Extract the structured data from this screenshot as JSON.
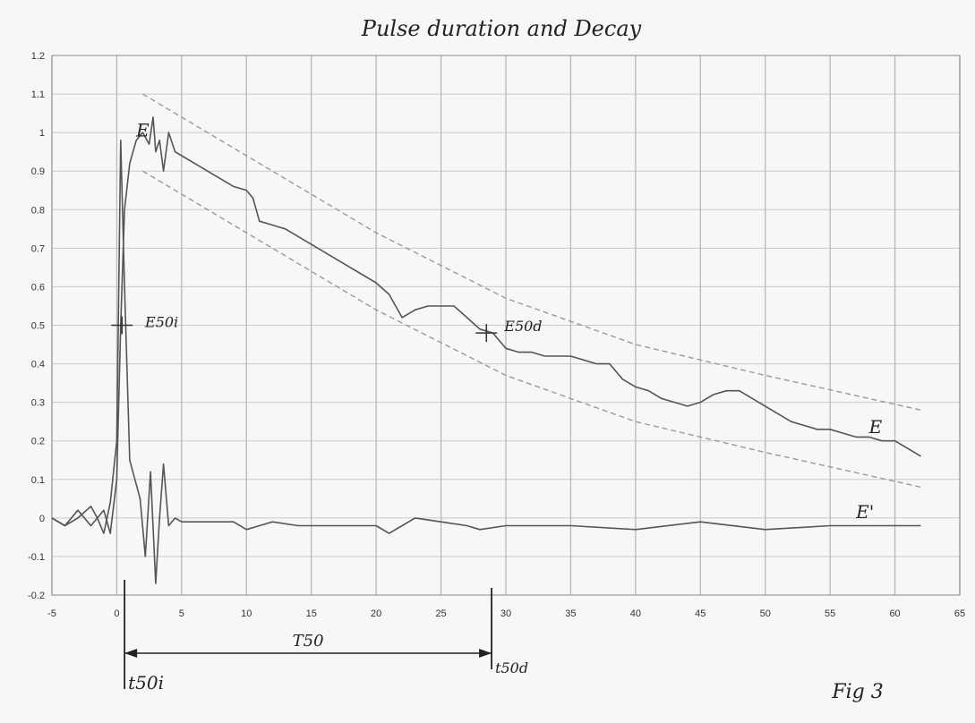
{
  "chart_data": {
    "type": "line",
    "title": "Pulse duration and Decay",
    "figure_label": "Fig 3",
    "xlim": [
      -5,
      65
    ],
    "ylim": [
      -0.2,
      1.2
    ],
    "x_ticks": [
      -5,
      0,
      5,
      10,
      15,
      20,
      25,
      30,
      35,
      40,
      45,
      50,
      55,
      60,
      65
    ],
    "y_ticks": [
      -0.2,
      -0.1,
      0,
      0.1,
      0.2,
      0.3,
      0.4,
      0.5,
      0.6,
      0.7,
      0.8,
      0.9,
      1,
      1.1,
      1.2
    ],
    "x_tick_labels": [
      "-5",
      "0",
      "5",
      "10",
      "15",
      "20",
      "25",
      "30",
      "35",
      "40",
      "45",
      "50",
      "55",
      "60",
      "65"
    ],
    "y_tick_labels": [
      "-0.2",
      "-0.1",
      "0",
      "0.1",
      "0.2",
      "0.3",
      "0.4",
      "0.5",
      "0.6",
      "0.7",
      "0.8",
      "0.9",
      "1",
      "1.1",
      "1.2"
    ],
    "grid": true,
    "series": [
      {
        "name": "E",
        "color": "#555555",
        "style": "solid",
        "x": [
          -5,
          -4,
          -3,
          -2,
          -1.5,
          -1,
          -0.5,
          0,
          0.3,
          0.6,
          1,
          1.5,
          2,
          2.5,
          2.8,
          3,
          3.3,
          3.6,
          4,
          4.5,
          5,
          6,
          7,
          8,
          9,
          10,
          10.5,
          11,
          12,
          13,
          14,
          15,
          16,
          17,
          18,
          19,
          20,
          21,
          22,
          23,
          24,
          25,
          26,
          27,
          28,
          29,
          30,
          31,
          32,
          33,
          34,
          35,
          36,
          37,
          38,
          39,
          40,
          41,
          42,
          43,
          44,
          45,
          46,
          47,
          48,
          49,
          50,
          51,
          52,
          53,
          54,
          55,
          56,
          57,
          58,
          59,
          60,
          61,
          62
        ],
        "y": [
          0,
          -0.02,
          0,
          0.03,
          0,
          0.02,
          -0.04,
          0.1,
          0.5,
          0.8,
          0.92,
          0.98,
          1.0,
          0.97,
          1.04,
          0.95,
          0.98,
          0.9,
          1.0,
          0.95,
          0.94,
          0.92,
          0.9,
          0.88,
          0.86,
          0.85,
          0.83,
          0.77,
          0.76,
          0.75,
          0.73,
          0.71,
          0.69,
          0.67,
          0.65,
          0.63,
          0.61,
          0.58,
          0.52,
          0.54,
          0.55,
          0.55,
          0.55,
          0.52,
          0.49,
          0.48,
          0.44,
          0.43,
          0.43,
          0.42,
          0.42,
          0.42,
          0.41,
          0.4,
          0.4,
          0.36,
          0.34,
          0.33,
          0.31,
          0.3,
          0.29,
          0.3,
          0.32,
          0.33,
          0.33,
          0.31,
          0.29,
          0.27,
          0.25,
          0.24,
          0.23,
          0.23,
          0.22,
          0.21,
          0.21,
          0.2,
          0.2,
          0.18,
          0.16
        ]
      },
      {
        "name": "E'",
        "color": "#555555",
        "style": "solid",
        "x": [
          -5,
          -4,
          -3,
          -2,
          -1.5,
          -1,
          -0.5,
          0,
          0.3,
          0.6,
          1,
          1.4,
          1.8,
          2.2,
          2.6,
          3,
          3.3,
          3.6,
          4,
          4.5,
          5,
          7,
          9,
          10,
          11,
          12,
          14,
          16,
          18,
          20,
          21,
          22,
          23,
          25,
          27,
          28,
          30,
          35,
          40,
          45,
          50,
          55,
          60,
          62
        ],
        "y": [
          0,
          -0.02,
          0.02,
          -0.02,
          0,
          -0.04,
          0.04,
          0.2,
          0.98,
          0.6,
          0.15,
          0.1,
          0.05,
          -0.1,
          0.12,
          -0.17,
          0.0,
          0.14,
          -0.02,
          0,
          -0.01,
          -0.01,
          -0.01,
          -0.03,
          -0.02,
          -0.01,
          -0.02,
          -0.02,
          -0.02,
          -0.02,
          -0.04,
          -0.02,
          0.0,
          -0.01,
          -0.02,
          -0.03,
          -0.02,
          -0.02,
          -0.03,
          -0.01,
          -0.03,
          -0.02,
          -0.02,
          -0.02
        ]
      },
      {
        "name": "upper bound",
        "color": "#999999",
        "style": "dashed",
        "x": [
          2,
          10,
          20,
          30,
          40,
          50,
          62
        ],
        "y": [
          1.1,
          0.94,
          0.74,
          0.57,
          0.45,
          0.37,
          0.28
        ]
      },
      {
        "name": "lower bound",
        "color": "#999999",
        "style": "dashed",
        "x": [
          2,
          10,
          20,
          30,
          40,
          50,
          62
        ],
        "y": [
          0.9,
          0.74,
          0.54,
          0.37,
          0.25,
          0.17,
          0.08
        ]
      }
    ],
    "annotations": {
      "curve_labels": [
        {
          "text": "E",
          "x": 1.5,
          "y": 0.99
        },
        {
          "text": "E",
          "x": 58,
          "y": 0.22
        },
        {
          "text": "E'",
          "x": 57,
          "y": 0.0
        }
      ],
      "marker_labels": [
        {
          "text": "E50i",
          "x": 0.8,
          "y": 0.5
        },
        {
          "text": "E50d",
          "x": 28.5,
          "y": 0.49
        }
      ],
      "markers": [
        {
          "x": 0.4,
          "y": 0.5
        },
        {
          "x": 28.5,
          "y": 0.48
        }
      ],
      "interval": {
        "start_x": 0.6,
        "end_x": 28.9,
        "label": "T50",
        "start_label": "t50i",
        "end_label": "t50d"
      }
    }
  }
}
